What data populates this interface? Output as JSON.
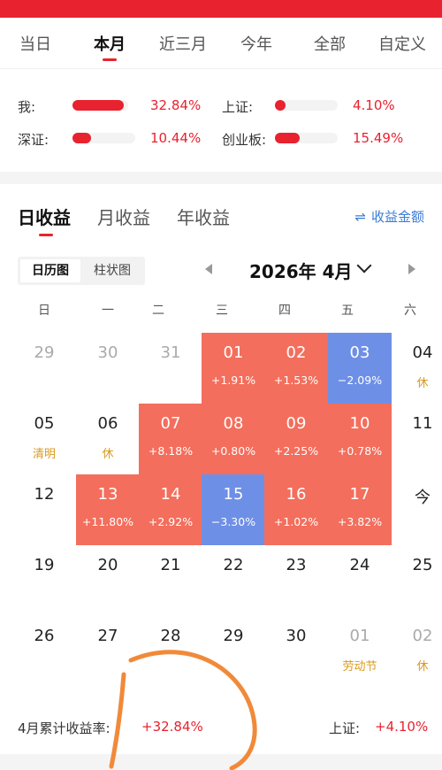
{
  "period_tabs": [
    {
      "label": "当日"
    },
    {
      "label": "本月",
      "active": true
    },
    {
      "label": "近三月"
    },
    {
      "label": "今年"
    },
    {
      "label": "全部"
    },
    {
      "label": "自定义"
    }
  ],
  "comparison": [
    {
      "label": "我:",
      "value": "32.84%",
      "fraction": 0.92
    },
    {
      "label": "上证:",
      "value": "4.10%",
      "fraction": 0.1
    },
    {
      "label": "深证:",
      "value": "10.44%",
      "fraction": 0.3
    },
    {
      "label": "创业板:",
      "value": "15.49%",
      "fraction": 0.4
    }
  ],
  "return_tabs": [
    {
      "label": "日收益",
      "active": true
    },
    {
      "label": "月收益"
    },
    {
      "label": "年收益"
    }
  ],
  "amount_toggle": {
    "icon": "swap-icon",
    "label": "收益金额"
  },
  "view_toggle": {
    "calendar": "日历图",
    "bar": "柱状图"
  },
  "month_nav": {
    "label": "2026年 4月"
  },
  "weekdays": [
    "日",
    "一",
    "二",
    "三",
    "四",
    "五",
    "六"
  ],
  "calendar": {
    "weeks": [
      [
        {
          "day": "29",
          "muted": true
        },
        {
          "day": "30",
          "muted": true
        },
        {
          "day": "31",
          "muted": true
        },
        {
          "day": "01",
          "pct": "+1.91%",
          "state": "gain"
        },
        {
          "day": "02",
          "pct": "+1.53%",
          "state": "gain"
        },
        {
          "day": "03",
          "pct": "−2.09%",
          "state": "loss"
        },
        {
          "day": "04",
          "note": "休"
        }
      ],
      [
        {
          "day": "05",
          "note": "清明"
        },
        {
          "day": "06",
          "note": "休"
        },
        {
          "day": "07",
          "pct": "+8.18%",
          "state": "gain"
        },
        {
          "day": "08",
          "pct": "+0.80%",
          "state": "gain"
        },
        {
          "day": "09",
          "pct": "+2.25%",
          "state": "gain"
        },
        {
          "day": "10",
          "pct": "+0.78%",
          "state": "gain"
        },
        {
          "day": "11"
        }
      ],
      [
        {
          "day": "12"
        },
        {
          "day": "13",
          "pct": "+11.80%",
          "state": "gain"
        },
        {
          "day": "14",
          "pct": "+2.92%",
          "state": "gain"
        },
        {
          "day": "15",
          "pct": "−3.30%",
          "state": "loss"
        },
        {
          "day": "16",
          "pct": "+1.02%",
          "state": "gain"
        },
        {
          "day": "17",
          "pct": "+3.82%",
          "state": "gain"
        },
        {
          "day": "今"
        }
      ],
      [
        {
          "day": "19"
        },
        {
          "day": "20"
        },
        {
          "day": "21"
        },
        {
          "day": "22"
        },
        {
          "day": "23"
        },
        {
          "day": "24"
        },
        {
          "day": "25"
        }
      ],
      [
        {
          "day": "26"
        },
        {
          "day": "27"
        },
        {
          "day": "28"
        },
        {
          "day": "29"
        },
        {
          "day": "30"
        },
        {
          "day": "01",
          "muted": true,
          "note": "劳动节"
        },
        {
          "day": "02",
          "muted": true,
          "note": "休"
        }
      ]
    ]
  },
  "summary": {
    "label": "4月累计收益率:",
    "value": "+32.84%",
    "index_label": "上证:",
    "index_value": "+4.10%"
  },
  "colors": {
    "accent": "#e8222f",
    "gain": "#f36e5c",
    "loss": "#6e8fe6",
    "holiday": "#d99a1c",
    "link": "#3a7bd5",
    "scribble": "#f08a3a"
  }
}
